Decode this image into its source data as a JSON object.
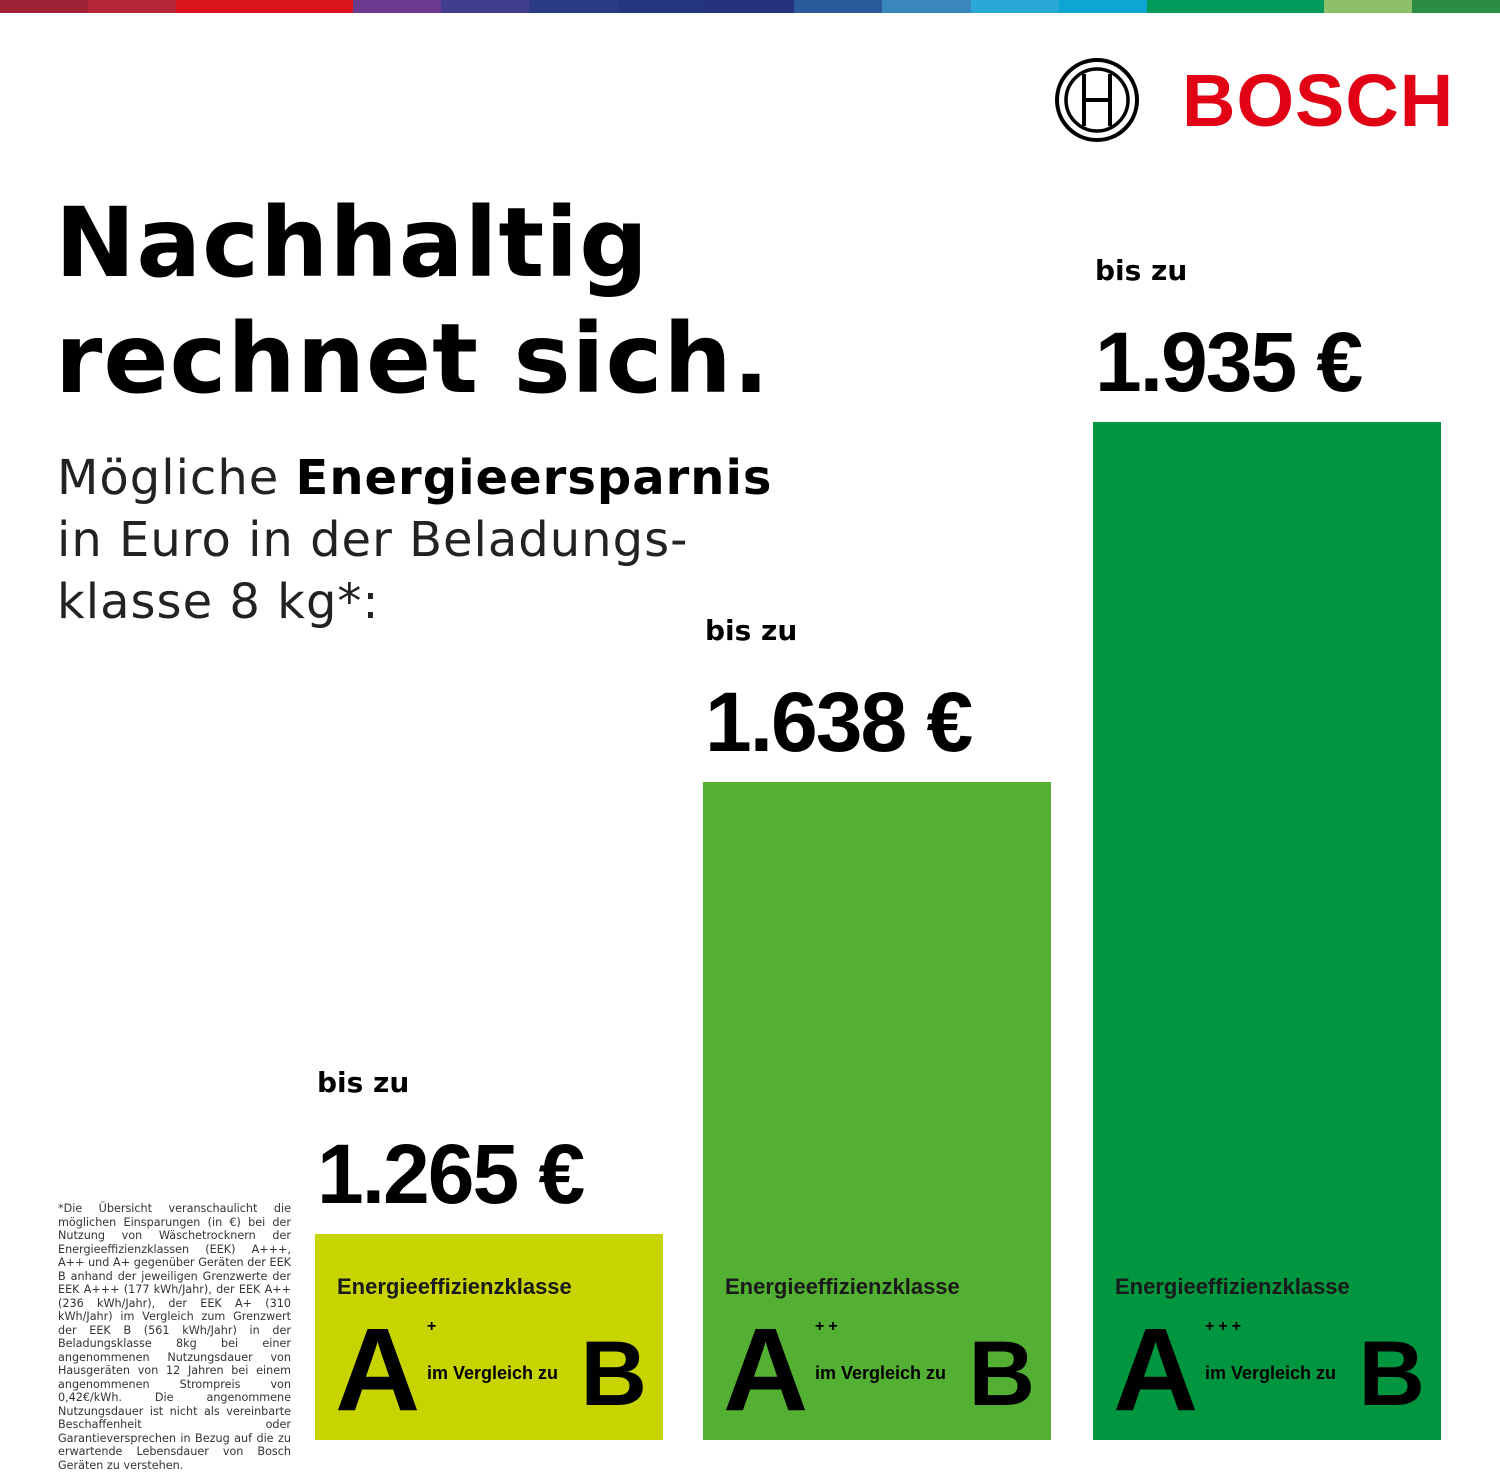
{
  "stripe_colors": [
    "#9e2236",
    "#b8263b",
    "#d9141d",
    "#d9141d",
    "#6b3a8f",
    "#433d8f",
    "#2a3b84",
    "#253580",
    "#26327e",
    "#2c5b9d",
    "#3a86bd",
    "#2aa8d6",
    "#0ea5d2",
    "#009a5a",
    "#009a5a",
    "#8ebf6a",
    "#2c8c43"
  ],
  "brand": {
    "name": "BOSCH",
    "color": "#e20015"
  },
  "title_line1": "Nachhaltig",
  "title_line2": "rechnet sich.",
  "subtitle": {
    "pre": "Mögliche ",
    "bold": "Energieersparnis",
    "line2": "in Euro in der Beladungs-",
    "line3": "klasse 8 kg*:"
  },
  "footnote": "*Die Übersicht veranschaulicht die möglichen Einsparungen (in €) bei der Nutzung von Wäschetrocknern der Energieeffizienzklassen (EEK) A+++, A++ und A+ gegenüber Geräten der EEK B anhand der jeweiligen Grenzwerte der EEK A+++ (177 kWh/Jahr), der EEK A++ (236 kWh/Jahr), der EEK A+ (310 kWh/Jahr) im Vergleich zum Grenzwert der EEK B (561 kWh/Jahr) in der Beladungsklasse 8kg bei einer angenommenen Nutzungsdauer von Hausgeräten von 12 Jahren bei einem angenommenen Strompreis von 0,42€/kWh. Die angenommene Nutzungsdauer ist nicht als vereinbarte Beschaffenheit oder Garantieversprechen in Bezug auf die zu erwartende Lebensdauer von Bosch Geräten zu verstehen.",
  "chart_data": {
    "type": "bar",
    "categories": [
      "A+",
      "A++",
      "A+++"
    ],
    "values": [
      1265,
      1638,
      1935
    ],
    "value_labels": [
      "1.265 €",
      "1.638 €",
      "1.935 €"
    ],
    "prefix_label": "bis zu",
    "class_label": "Energieeffizienzklasse",
    "class_letter": "A",
    "class_plus": [
      "+",
      "++",
      "+++"
    ],
    "compare_label": "im Vergleich zu",
    "compare_class": "B",
    "colors": [
      "#c8d400",
      "#53b033",
      "#00963f"
    ]
  }
}
